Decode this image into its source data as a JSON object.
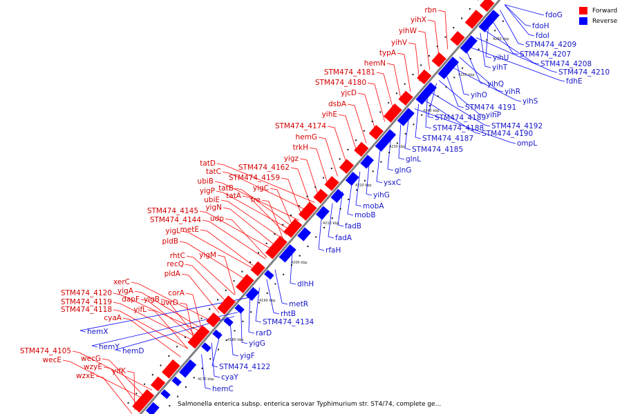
{
  "legend": {
    "forward_label": "Forward",
    "reverse_label": "Reverse",
    "forward_color": "#ff0000",
    "reverse_color": "#0000ff"
  },
  "caption": "Salmonella enterica subsp. enterica serovar Typhimurium str. ST4/74, complete ge...",
  "ticks": [
    "4170 kbp",
    "4180 kbp",
    "4190 kbp",
    "4200 kbp",
    "4210 kbp",
    "4220 kbp",
    "4230 kbp",
    "4240 kbp",
    "4250 kbp",
    "4260 kbp"
  ],
  "forward_labels": [
    "rbn",
    "yihX",
    "yihW",
    "yihV",
    "typA",
    "hemN",
    "STM474_4181",
    "STM474_4180",
    "yjcD",
    "dsbA",
    "yihE",
    "STM474_4174",
    "hemG",
    "trkH",
    "yigz",
    "STM474_4162",
    "STM474_4159",
    "yigC",
    "fre",
    "tatD",
    "tatC",
    "ubiB",
    "tatB",
    "tatA",
    "yigP",
    "ubiE",
    "yigN",
    "STM474_4145",
    "udp",
    "STM474_4144",
    "metE",
    "yigL",
    "pldB",
    "yigM",
    "rhtC",
    "recQ",
    "pldA",
    "corA",
    "xerC",
    "yigA",
    "uvrD",
    "dapF",
    "yigB",
    "STM474_4120",
    "STM474_4119",
    "yifL",
    "STM474_4118",
    "cyaA",
    "STM474_4105",
    "wecE",
    "wecG",
    "wzyE",
    "yifK",
    "wzxE"
  ],
  "reverse_labels": [
    "fdoG",
    "fdoH",
    "fdoI",
    "STM474_4209",
    "STM474_4207",
    "STM474_4208",
    "STM474_4210",
    "fdhE",
    "yihU",
    "yihT",
    "yihQ",
    "yihR",
    "yihS",
    "yihO",
    "STM474_4191",
    "yihP",
    "STM474_4189",
    "STM474_4192",
    "STM474_4188",
    "STM474_4190",
    "STM474_4187",
    "ompL",
    "STM474_4185",
    "glnL",
    "glnG",
    "ysxC",
    "yihG",
    "mobA",
    "mobB",
    "fadB",
    "fadA",
    "rfaH",
    "dlhH",
    "metR",
    "rhtB",
    "STM474_4134",
    "rarD",
    "yigG",
    "yigF",
    "STM474_4122",
    "cyaY",
    "hemC",
    "hemX",
    "hemY",
    "hemD"
  ]
}
